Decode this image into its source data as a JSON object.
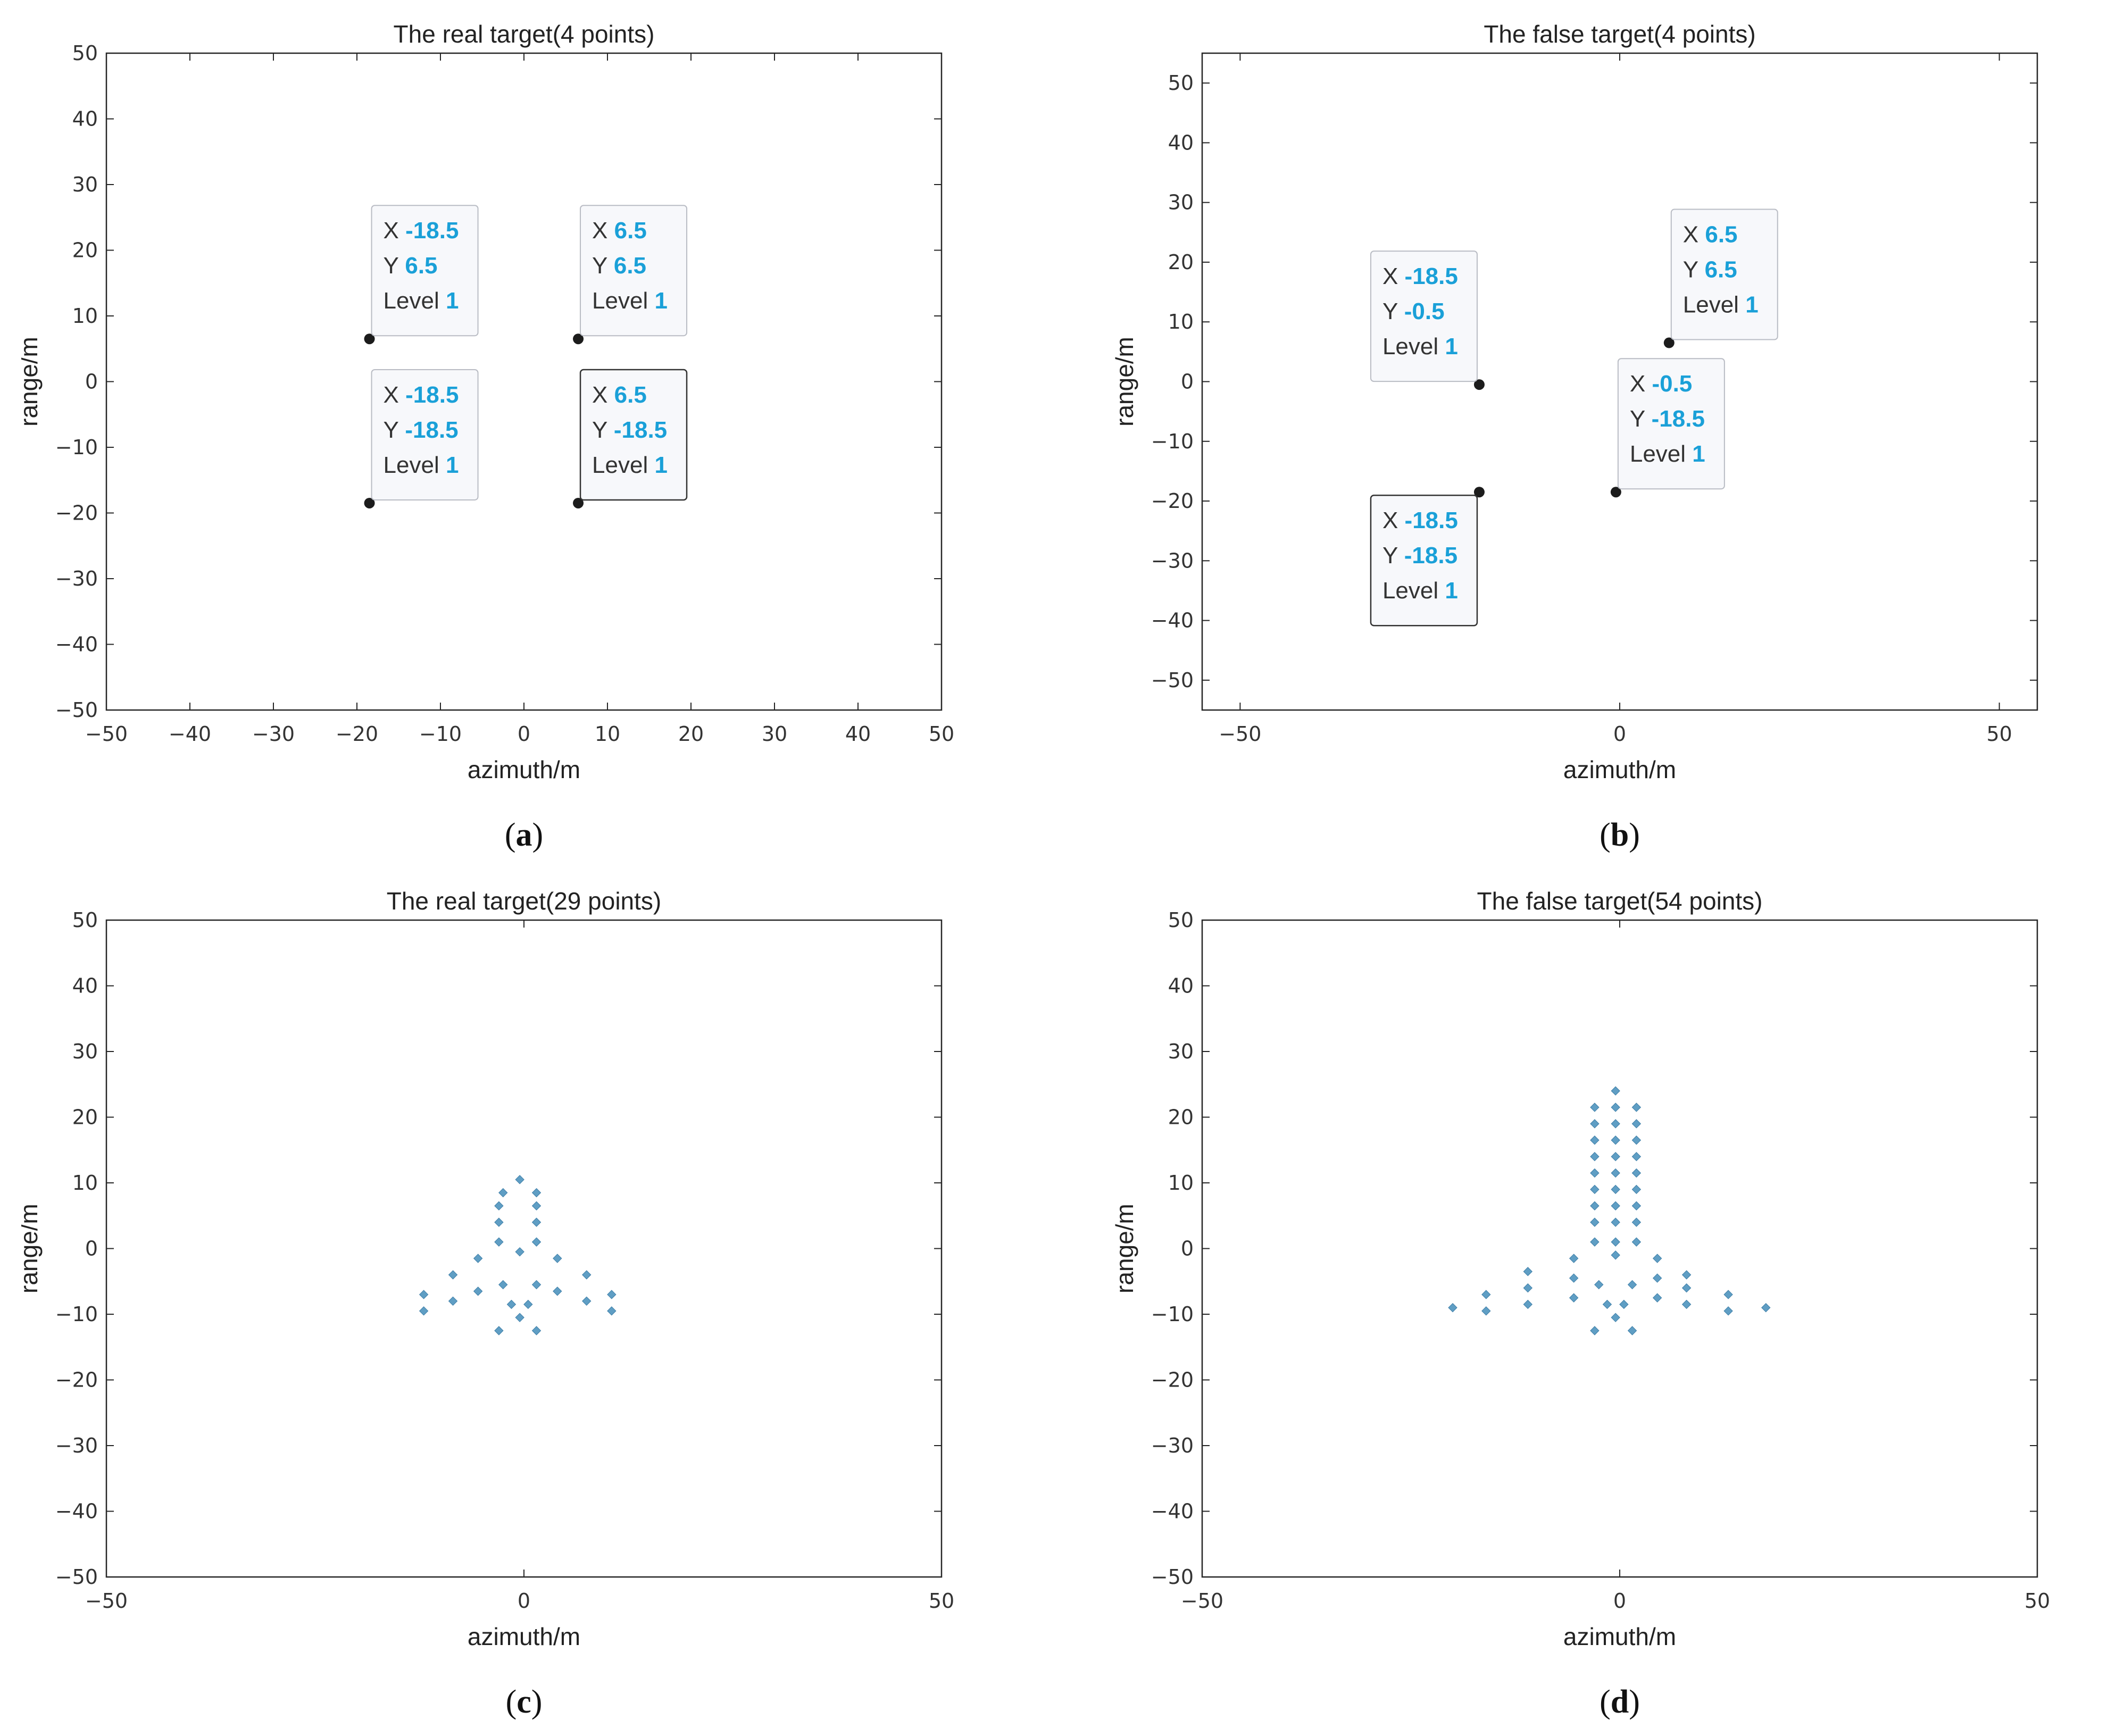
{
  "chart_data": [
    {
      "id": "a",
      "type": "scatter",
      "subplot_label": "a",
      "title": "The real target(4 points)",
      "xlabel": "azimuth/m",
      "ylabel": "range/m",
      "xlim": [
        -50,
        50
      ],
      "ylim": [
        -50,
        50
      ],
      "xticks": [
        -50,
        -40,
        -30,
        -20,
        -10,
        0,
        10,
        20,
        30,
        40,
        50
      ],
      "yticks": [
        -50,
        -40,
        -30,
        -20,
        -10,
        0,
        10,
        20,
        30,
        40,
        50
      ],
      "marker_color": "#1c1c1c",
      "points": [
        {
          "x": -18.5,
          "y": 6.5
        },
        {
          "x": 6.5,
          "y": 6.5
        },
        {
          "x": -18.5,
          "y": -18.5
        },
        {
          "x": 6.5,
          "y": -18.5
        }
      ],
      "datatips": [
        {
          "x": -18.5,
          "y": 6.5,
          "level": 1,
          "x_label": "X",
          "y_label": "Y",
          "level_label": "Level",
          "x_text": "-18.5",
          "y_text": "6.5",
          "level_text": "1",
          "anchor": "top-right"
        },
        {
          "x": 6.5,
          "y": 6.5,
          "level": 1,
          "x_label": "X",
          "y_label": "Y",
          "level_label": "Level",
          "x_text": "6.5",
          "y_text": "6.5",
          "level_text": "1",
          "anchor": "top-right"
        },
        {
          "x": -18.5,
          "y": -18.5,
          "level": 1,
          "x_label": "X",
          "y_label": "Y",
          "level_label": "Level",
          "x_text": "-18.5",
          "y_text": "-18.5",
          "level_text": "1",
          "anchor": "top-right"
        },
        {
          "x": 6.5,
          "y": -18.5,
          "level": 1,
          "x_label": "X",
          "y_label": "Y",
          "level_label": "Level",
          "x_text": "6.5",
          "y_text": "-18.5",
          "level_text": "1",
          "anchor": "top-right",
          "selected": true
        }
      ]
    },
    {
      "id": "b",
      "type": "scatter",
      "subplot_label": "b",
      "title": "The false target(4 points)",
      "xlabel": "azimuth/m",
      "ylabel": "range/m",
      "xlim": [
        -55,
        55
      ],
      "ylim": [
        -55,
        55
      ],
      "xticks": [
        -50,
        0,
        50
      ],
      "yticks": [
        -50,
        -40,
        -30,
        -20,
        -10,
        0,
        10,
        20,
        30,
        40,
        50
      ],
      "marker_color": "#1c1c1c",
      "points": [
        {
          "x": -18.5,
          "y": -0.5
        },
        {
          "x": 6.5,
          "y": 6.5
        },
        {
          "x": -0.5,
          "y": -18.5
        },
        {
          "x": -18.5,
          "y": -18.5
        }
      ],
      "datatips": [
        {
          "x": -18.5,
          "y": -0.5,
          "level": 1,
          "x_label": "X",
          "y_label": "Y",
          "level_label": "Level",
          "x_text": "-18.5",
          "y_text": "-0.5",
          "level_text": "1",
          "anchor": "top-left"
        },
        {
          "x": 6.5,
          "y": 6.5,
          "level": 1,
          "x_label": "X",
          "y_label": "Y",
          "level_label": "Level",
          "x_text": "6.5",
          "y_text": "6.5",
          "level_text": "1",
          "anchor": "top-right"
        },
        {
          "x": -0.5,
          "y": -18.5,
          "level": 1,
          "x_label": "X",
          "y_label": "Y",
          "level_label": "Level",
          "x_text": "-0.5",
          "y_text": "-18.5",
          "level_text": "1",
          "anchor": "top-right"
        },
        {
          "x": -18.5,
          "y": -18.5,
          "level": 1,
          "x_label": "X",
          "y_label": "Y",
          "level_label": "Level",
          "x_text": "-18.5",
          "y_text": "-18.5",
          "level_text": "1",
          "anchor": "bottom-left",
          "selected": true
        }
      ]
    },
    {
      "id": "c",
      "type": "scatter",
      "subplot_label": "c",
      "title": "The real target(29 points)",
      "xlabel": "azimuth/m",
      "ylabel": "range/m",
      "xlim": [
        -50,
        50
      ],
      "ylim": [
        -50,
        50
      ],
      "xticks": [
        -50,
        0,
        50
      ],
      "yticks": [
        -50,
        -40,
        -30,
        -20,
        -10,
        0,
        10,
        20,
        30,
        40,
        50
      ],
      "marker_color": "#5f9ec4",
      "points": [
        {
          "x": -0.5,
          "y": 10.5
        },
        {
          "x": -2.5,
          "y": 8.5
        },
        {
          "x": 1.5,
          "y": 8.5
        },
        {
          "x": -3,
          "y": 6.5
        },
        {
          "x": 1.5,
          "y": 6.5
        },
        {
          "x": -3,
          "y": 4
        },
        {
          "x": 1.5,
          "y": 4
        },
        {
          "x": -3,
          "y": 1
        },
        {
          "x": 1.5,
          "y": 1
        },
        {
          "x": -0.5,
          "y": -0.5
        },
        {
          "x": -5.5,
          "y": -1.5
        },
        {
          "x": 4,
          "y": -1.5
        },
        {
          "x": -8.5,
          "y": -4
        },
        {
          "x": 7.5,
          "y": -4
        },
        {
          "x": -2.5,
          "y": -5.5
        },
        {
          "x": 1.5,
          "y": -5.5
        },
        {
          "x": -5.5,
          "y": -6.5
        },
        {
          "x": 4,
          "y": -6.5
        },
        {
          "x": -12,
          "y": -7
        },
        {
          "x": 10.5,
          "y": -7
        },
        {
          "x": -8.5,
          "y": -8
        },
        {
          "x": 7.5,
          "y": -8
        },
        {
          "x": -1.5,
          "y": -8.5
        },
        {
          "x": 0.5,
          "y": -8.5
        },
        {
          "x": -12,
          "y": -9.5
        },
        {
          "x": 10.5,
          "y": -9.5
        },
        {
          "x": -0.5,
          "y": -10.5
        },
        {
          "x": -3,
          "y": -12.5
        },
        {
          "x": 1.5,
          "y": -12.5
        }
      ]
    },
    {
      "id": "d",
      "type": "scatter",
      "subplot_label": "d",
      "title": "The false target(54 points)",
      "xlabel": "azimuth/m",
      "ylabel": "range/m",
      "xlim": [
        -50,
        50
      ],
      "ylim": [
        -50,
        50
      ],
      "xticks": [
        -50,
        0,
        50
      ],
      "yticks": [
        -50,
        -40,
        -30,
        -20,
        -10,
        0,
        10,
        20,
        30,
        40,
        50
      ],
      "marker_color": "#5f9ec4",
      "points": [
        {
          "x": -0.5,
          "y": 24
        },
        {
          "x": -3,
          "y": 21.5
        },
        {
          "x": -0.5,
          "y": 21.5
        },
        {
          "x": 2,
          "y": 21.5
        },
        {
          "x": -3,
          "y": 19
        },
        {
          "x": -0.5,
          "y": 19
        },
        {
          "x": 2,
          "y": 19
        },
        {
          "x": -3,
          "y": 16.5
        },
        {
          "x": -0.5,
          "y": 16.5
        },
        {
          "x": 2,
          "y": 16.5
        },
        {
          "x": -3,
          "y": 14
        },
        {
          "x": -0.5,
          "y": 14
        },
        {
          "x": 2,
          "y": 14
        },
        {
          "x": -3,
          "y": 11.5
        },
        {
          "x": -0.5,
          "y": 11.5
        },
        {
          "x": 2,
          "y": 11.5
        },
        {
          "x": -3,
          "y": 9
        },
        {
          "x": -0.5,
          "y": 9
        },
        {
          "x": 2,
          "y": 9
        },
        {
          "x": -3,
          "y": 6.5
        },
        {
          "x": -0.5,
          "y": 6.5
        },
        {
          "x": 2,
          "y": 6.5
        },
        {
          "x": -3,
          "y": 4
        },
        {
          "x": -0.5,
          "y": 4
        },
        {
          "x": 2,
          "y": 4
        },
        {
          "x": -3,
          "y": 1
        },
        {
          "x": -0.5,
          "y": 1
        },
        {
          "x": 2,
          "y": 1
        },
        {
          "x": -0.5,
          "y": -1
        },
        {
          "x": -5.5,
          "y": -1.5
        },
        {
          "x": 4.5,
          "y": -1.5
        },
        {
          "x": -11,
          "y": -3.5
        },
        {
          "x": 8,
          "y": -4
        },
        {
          "x": -5.5,
          "y": -4.5
        },
        {
          "x": 4.5,
          "y": -4.5
        },
        {
          "x": -2.5,
          "y": -5.5
        },
        {
          "x": 1.5,
          "y": -5.5
        },
        {
          "x": -11,
          "y": -6
        },
        {
          "x": 8,
          "y": -6
        },
        {
          "x": -16,
          "y": -7
        },
        {
          "x": 13,
          "y": -7
        },
        {
          "x": -5.5,
          "y": -7.5
        },
        {
          "x": 4.5,
          "y": -7.5
        },
        {
          "x": -1.5,
          "y": -8.5
        },
        {
          "x": 0.5,
          "y": -8.5
        },
        {
          "x": -11,
          "y": -8.5
        },
        {
          "x": 8,
          "y": -8.5
        },
        {
          "x": -20,
          "y": -9
        },
        {
          "x": 17.5,
          "y": -9
        },
        {
          "x": -16,
          "y": -9.5
        },
        {
          "x": 13,
          "y": -9.5
        },
        {
          "x": -0.5,
          "y": -10.5
        },
        {
          "x": -3,
          "y": -12.5
        },
        {
          "x": 1.5,
          "y": -12.5
        }
      ]
    }
  ]
}
